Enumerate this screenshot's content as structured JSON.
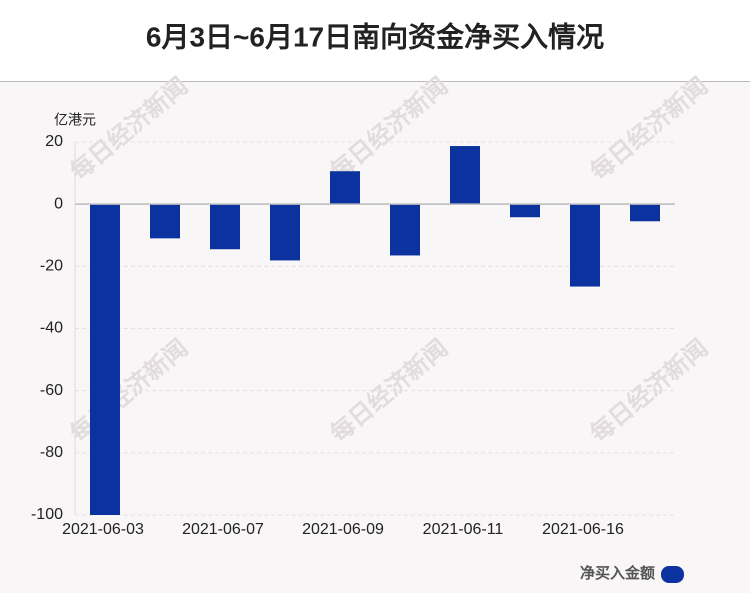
{
  "chart_data": {
    "type": "bar",
    "title": "6月3日~6月17日南向资金净买入情况",
    "y_label": "亿港元",
    "watermark": "每日经济新闻",
    "categories": [
      "2021-06-03",
      null,
      "2021-06-07",
      null,
      "2021-06-09",
      null,
      "2021-06-11",
      null,
      "2021-06-16",
      null
    ],
    "series": [
      {
        "name": "净买入金额",
        "color": "#0b329f",
        "values": [
          -100,
          -11.0,
          -14.5,
          -18.1,
          10.6,
          -16.5,
          18.7,
          -4.2,
          -26.5,
          -5.5
        ]
      }
    ],
    "ylim": [
      -100,
      20
    ],
    "yticks": [
      -100,
      -80,
      -60,
      -40,
      -20,
      0,
      20
    ],
    "grid": true
  }
}
